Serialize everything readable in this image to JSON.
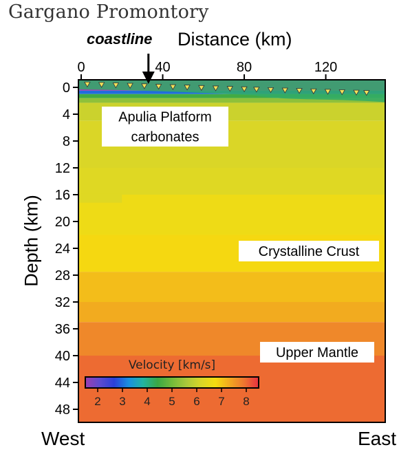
{
  "figure": {
    "title": "Gargano Promontory",
    "coastline_label": "coastline",
    "west_label": "West",
    "east_label": "East"
  },
  "chart_data": {
    "type": "heatmap",
    "xlabel": "Distance (km)",
    "ylabel": "Depth (km)",
    "x_ticks": [
      0,
      40,
      80,
      120
    ],
    "y_ticks": [
      0,
      4,
      8,
      12,
      16,
      20,
      24,
      28,
      32,
      36,
      40,
      44,
      48
    ],
    "xlim": [
      0,
      140
    ],
    "ylim": [
      0,
      50
    ],
    "coastline_x": 33,
    "stations_x": [
      3,
      10,
      17,
      24,
      31,
      38,
      45,
      52,
      59,
      66,
      73,
      80,
      86,
      93,
      100,
      107,
      114,
      121,
      128,
      135,
      140
    ],
    "layers": [
      {
        "name": "Apulia Platform carbonates",
        "label": "Apulia Platform\ncarbonates",
        "depth_range": [
          1,
          16
        ],
        "velocity": 6.2
      },
      {
        "name": "Crystalline Crust",
        "label": "Crystalline Crust",
        "depth_range": [
          16,
          35
        ],
        "velocity": 6.8
      },
      {
        "name": "Upper Mantle",
        "label": "Upper Mantle",
        "depth_range": [
          35,
          50
        ],
        "velocity": 7.9
      }
    ],
    "velocity_bands": [
      {
        "top": 0.0,
        "bottom": 0.5,
        "v": 1.5
      },
      {
        "top": 0.5,
        "bottom": 1.0,
        "v": 3.0
      },
      {
        "top": 1.0,
        "bottom": 1.6,
        "v": 4.5
      },
      {
        "top": 1.6,
        "bottom": 2.3,
        "v": 5.3
      },
      {
        "top": 2.3,
        "bottom": 5.0,
        "v": 6.0
      },
      {
        "top": 5.0,
        "bottom": 12.0,
        "v": 6.2
      },
      {
        "top": 12.0,
        "bottom": 16.0,
        "v": 6.3
      },
      {
        "top": 16.0,
        "bottom": 22.0,
        "v": 6.6
      },
      {
        "top": 22.0,
        "bottom": 27.5,
        "v": 6.8
      },
      {
        "top": 27.5,
        "bottom": 32.0,
        "v": 7.1
      },
      {
        "top": 32.0,
        "bottom": 35.0,
        "v": 7.3
      },
      {
        "top": 35.0,
        "bottom": 40.0,
        "v": 7.7
      },
      {
        "top": 40.0,
        "bottom": 50.0,
        "v": 8.0
      }
    ],
    "colorbar": {
      "title": "Velocity [km/s]",
      "ticks": [
        2,
        3,
        4,
        5,
        6,
        7,
        8
      ],
      "range": [
        1.5,
        8.5
      ],
      "colors": [
        "#9b3fb0",
        "#5d4bd0",
        "#2b40d8",
        "#1a8fe0",
        "#22b4a0",
        "#3aa845",
        "#73ba3a",
        "#aac83a",
        "#d8d628",
        "#f5dd10",
        "#f2a820",
        "#ee7530",
        "#e83040"
      ]
    }
  }
}
